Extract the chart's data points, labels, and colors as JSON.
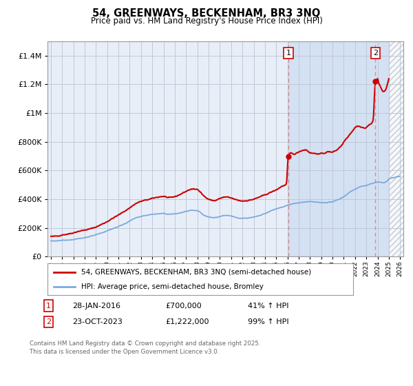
{
  "title": "54, GREENWAYS, BECKENHAM, BR3 3NQ",
  "subtitle": "Price paid vs. HM Land Registry's House Price Index (HPI)",
  "legend_label_red": "54, GREENWAYS, BECKENHAM, BR3 3NQ (semi-detached house)",
  "legend_label_blue": "HPI: Average price, semi-detached house, Bromley",
  "annotation1_label": "1",
  "annotation1_date": "28-JAN-2016",
  "annotation1_price": "£700,000",
  "annotation1_hpi": "41% ↑ HPI",
  "annotation2_label": "2",
  "annotation2_date": "23-OCT-2023",
  "annotation2_price": "£1,222,000",
  "annotation2_hpi": "99% ↑ HPI",
  "footnote": "Contains HM Land Registry data © Crown copyright and database right 2025.\nThis data is licensed under the Open Government Licence v3.0.",
  "color_red": "#cc0000",
  "color_blue": "#7aaadd",
  "color_dashed": "#e08080",
  "background_color": "#ffffff",
  "chart_bg": "#e8eef8",
  "grid_color": "#c0c8d8",
  "sale1_year": 2016.08,
  "sale1_value": 700000,
  "sale2_year": 2023.81,
  "sale2_value": 1222000,
  "xmin": 1994.7,
  "xmax": 2026.3,
  "ylim": [
    0,
    1500000
  ],
  "yticks": [
    0,
    200000,
    400000,
    600000,
    800000,
    1000000,
    1200000,
    1400000
  ],
  "future_start": 2025.0,
  "highlight_start": 2016.08
}
